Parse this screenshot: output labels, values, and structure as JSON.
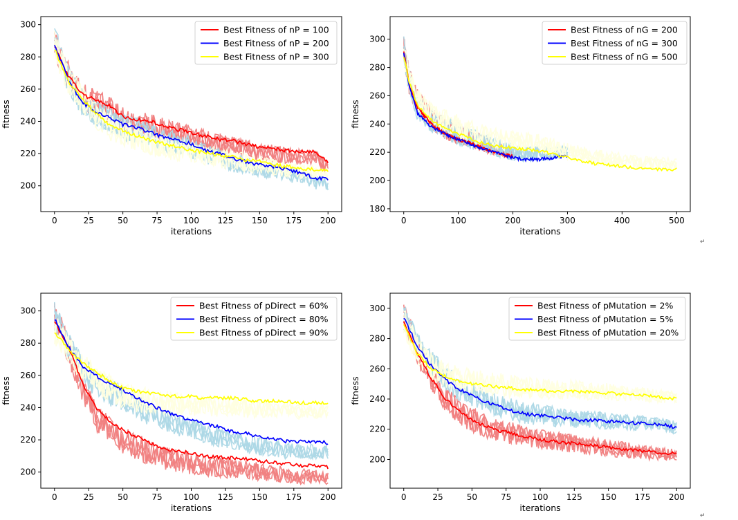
{
  "chart_data": [
    {
      "type": "line",
      "xlabel": "iterations",
      "ylabel": "fitness",
      "xlim": [
        -10,
        210
      ],
      "ylim": [
        184,
        305
      ],
      "xticks": [
        0,
        25,
        50,
        75,
        100,
        125,
        150,
        175,
        200
      ],
      "yticks": [
        200,
        220,
        240,
        260,
        280,
        300
      ],
      "legend": "top-right",
      "series": [
        {
          "name": "Best Fitness of nP = 100",
          "color": "#ff0000",
          "lightcolor": "#f08080",
          "x": [
            0,
            10,
            20,
            30,
            40,
            50,
            60,
            70,
            80,
            90,
            100,
            110,
            120,
            130,
            140,
            150,
            160,
            170,
            180,
            190,
            200
          ],
          "values": [
            287,
            268,
            257,
            253,
            250,
            243,
            241,
            240,
            237,
            235,
            233,
            231,
            229,
            228,
            226,
            224,
            223,
            222,
            221,
            221,
            215
          ]
        },
        {
          "name": "Best Fitness of nP = 200",
          "color": "#0000ff",
          "lightcolor": "#add8e6",
          "x": [
            0,
            10,
            20,
            30,
            40,
            50,
            60,
            70,
            80,
            90,
            100,
            110,
            120,
            130,
            140,
            150,
            160,
            170,
            180,
            190,
            200
          ],
          "values": [
            288,
            266,
            252,
            246,
            243,
            238,
            236,
            233,
            230,
            228,
            226,
            222,
            220,
            217,
            215,
            213,
            212,
            210,
            208,
            205,
            204
          ]
        },
        {
          "name": "Best Fitness of nP = 300",
          "color": "#ffff00",
          "lightcolor": "#ffffe0",
          "x": [
            0,
            10,
            20,
            30,
            40,
            50,
            60,
            70,
            80,
            90,
            100,
            110,
            120,
            130,
            140,
            150,
            160,
            170,
            180,
            190,
            200
          ],
          "values": [
            285,
            265,
            254,
            245,
            238,
            234,
            231,
            228,
            226,
            224,
            222,
            221,
            219,
            218,
            216,
            215,
            213,
            212,
            211,
            210,
            209
          ]
        }
      ]
    },
    {
      "type": "line",
      "xlabel": "iterations",
      "ylabel": "fitness",
      "xlim": [
        -25,
        525
      ],
      "ylim": [
        178,
        316
      ],
      "xticks": [
        0,
        100,
        200,
        300,
        400,
        500
      ],
      "yticks": [
        180,
        200,
        220,
        240,
        260,
        280,
        300
      ],
      "legend": "top-right",
      "series": [
        {
          "name": "Best Fitness of nG = 200",
          "color": "#ff0000",
          "lightcolor": "#f08080",
          "x": [
            0,
            10,
            25,
            50,
            75,
            100,
            125,
            150,
            175,
            200
          ],
          "values": [
            292,
            268,
            252,
            240,
            233,
            229,
            226,
            222,
            219,
            217
          ]
        },
        {
          "name": "Best Fitness of nG = 300",
          "color": "#0000ff",
          "lightcolor": "#add8e6",
          "x": [
            0,
            10,
            25,
            50,
            75,
            100,
            125,
            150,
            175,
            200,
            225,
            250,
            275,
            300
          ],
          "values": [
            291,
            267,
            248,
            238,
            233,
            229,
            225,
            222,
            219,
            216,
            215,
            215,
            216,
            217
          ]
        },
        {
          "name": "Best Fitness of nG = 500",
          "color": "#ffff00",
          "lightcolor": "#ffffe0",
          "x": [
            0,
            10,
            25,
            50,
            75,
            100,
            125,
            150,
            175,
            200,
            250,
            300,
            350,
            400,
            450,
            500
          ],
          "values": [
            288,
            270,
            253,
            243,
            237,
            233,
            229,
            226,
            224,
            223,
            221,
            216,
            212,
            210,
            208,
            208
          ]
        }
      ]
    },
    {
      "type": "line",
      "xlabel": "iterations",
      "ylabel": "fitness",
      "xlim": [
        -10,
        210
      ],
      "ylim": [
        190,
        311
      ],
      "xticks": [
        0,
        25,
        50,
        75,
        100,
        125,
        150,
        175,
        200
      ],
      "yticks": [
        200,
        220,
        240,
        260,
        280,
        300
      ],
      "legend": "top-right",
      "series": [
        {
          "name": "Best Fitness of pDirect = 60%",
          "color": "#ff0000",
          "lightcolor": "#f08080",
          "x": [
            0,
            10,
            20,
            30,
            40,
            50,
            60,
            70,
            80,
            90,
            100,
            110,
            120,
            130,
            140,
            150,
            160,
            170,
            180,
            190,
            200
          ],
          "values": [
            294,
            278,
            256,
            240,
            232,
            226,
            222,
            218,
            215,
            213,
            212,
            210,
            209,
            209,
            208,
            207,
            206,
            205,
            204,
            204,
            203
          ]
        },
        {
          "name": "Best Fitness of pDirect = 80%",
          "color": "#0000ff",
          "lightcolor": "#add8e6",
          "x": [
            0,
            10,
            20,
            30,
            40,
            50,
            60,
            70,
            80,
            90,
            100,
            110,
            120,
            130,
            140,
            150,
            160,
            170,
            180,
            190,
            200
          ],
          "values": [
            295,
            278,
            266,
            260,
            255,
            251,
            246,
            242,
            238,
            235,
            232,
            230,
            228,
            225,
            224,
            222,
            221,
            219,
            219,
            219,
            218
          ]
        },
        {
          "name": "Best Fitness of pDirect = 90%",
          "color": "#ffff00",
          "lightcolor": "#ffffe0",
          "x": [
            0,
            10,
            20,
            30,
            40,
            50,
            60,
            70,
            80,
            90,
            100,
            110,
            120,
            130,
            140,
            150,
            160,
            170,
            180,
            190,
            200
          ],
          "values": [
            287,
            276,
            268,
            262,
            257,
            252,
            250,
            249,
            248,
            247,
            247,
            246,
            246,
            246,
            245,
            244,
            244,
            244,
            243,
            243,
            243
          ]
        }
      ]
    },
    {
      "type": "line",
      "xlabel": "iterations",
      "ylabel": "fitness",
      "xlim": [
        -10,
        210
      ],
      "ylim": [
        181,
        310
      ],
      "xticks": [
        0,
        25,
        50,
        75,
        100,
        125,
        150,
        175,
        200
      ],
      "yticks": [
        200,
        220,
        240,
        260,
        280,
        300
      ],
      "legend": "top-right",
      "series": [
        {
          "name": "Best Fitness of pMutation = 2%",
          "color": "#ff0000",
          "lightcolor": "#f08080",
          "x": [
            0,
            10,
            20,
            30,
            40,
            50,
            60,
            70,
            80,
            90,
            100,
            110,
            120,
            130,
            140,
            150,
            160,
            170,
            180,
            190,
            200
          ],
          "values": [
            292,
            270,
            254,
            241,
            232,
            226,
            222,
            219,
            217,
            215,
            213,
            212,
            211,
            210,
            209,
            208,
            207,
            206,
            205,
            204,
            204
          ]
        },
        {
          "name": "Best Fitness of pMutation = 5%",
          "color": "#0000ff",
          "lightcolor": "#add8e6",
          "x": [
            0,
            10,
            20,
            30,
            40,
            50,
            60,
            70,
            80,
            90,
            100,
            110,
            120,
            130,
            140,
            150,
            160,
            170,
            180,
            190,
            200
          ],
          "values": [
            294,
            275,
            262,
            253,
            247,
            242,
            238,
            235,
            232,
            230,
            229,
            228,
            227,
            226,
            226,
            225,
            225,
            224,
            224,
            223,
            221
          ]
        },
        {
          "name": "Best Fitness of pMutation = 20%",
          "color": "#ffff00",
          "lightcolor": "#ffffe0",
          "x": [
            0,
            10,
            20,
            30,
            40,
            50,
            60,
            70,
            80,
            90,
            100,
            110,
            120,
            130,
            140,
            150,
            160,
            170,
            180,
            190,
            200
          ],
          "values": [
            290,
            270,
            260,
            255,
            252,
            250,
            249,
            248,
            247,
            246,
            246,
            245,
            245,
            245,
            244,
            244,
            243,
            243,
            242,
            241,
            240
          ]
        }
      ]
    }
  ],
  "return_marks": [
    "↵",
    "↵"
  ]
}
